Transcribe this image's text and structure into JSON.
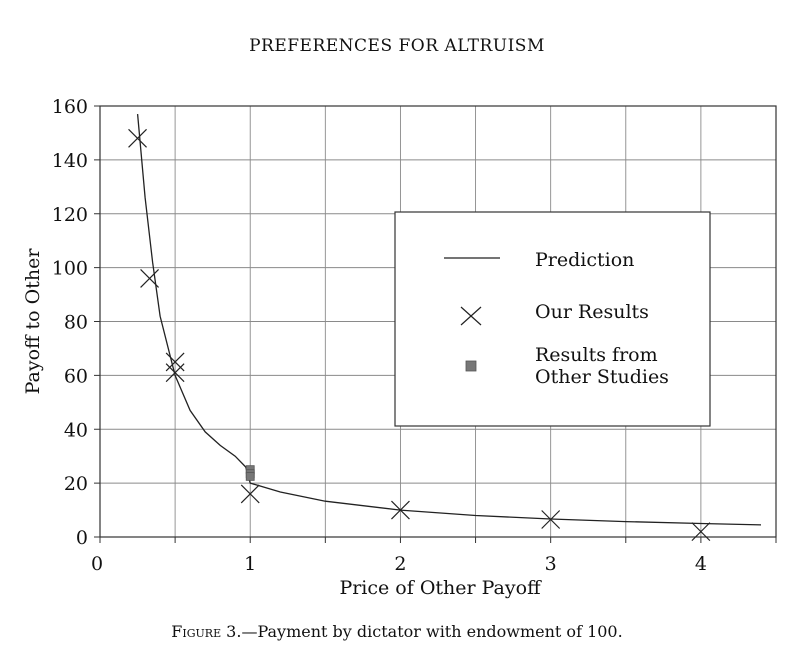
{
  "page": {
    "running_header": "PREFERENCES FOR ALTRUISM",
    "caption_prefix": "Figure 3.",
    "caption_text": "—Payment by dictator with endowment of 100."
  },
  "chart_data": {
    "type": "scatter",
    "title": "",
    "xlabel": "Price of Other Payoff",
    "ylabel": "Payoff to Other",
    "xlim": [
      0,
      4.5
    ],
    "ylim": [
      0,
      160
    ],
    "x_ticks": [
      0,
      1,
      2,
      3,
      4
    ],
    "y_ticks": [
      0,
      20,
      40,
      60,
      80,
      100,
      120,
      140,
      160
    ],
    "grid": true,
    "legend_position": "right-center",
    "series": [
      {
        "name": "Prediction",
        "kind": "line",
        "x": [
          0.25,
          0.3,
          0.35,
          0.4,
          0.5,
          0.6,
          0.7,
          0.8,
          0.9,
          0.97,
          1.0,
          1.2,
          1.5,
          2.0,
          2.5,
          3.0,
          3.5,
          4.0,
          4.4
        ],
        "y": [
          157,
          126,
          102,
          82,
          60,
          47,
          39,
          34,
          30,
          26,
          20,
          16.7,
          13.3,
          10.0,
          8.0,
          6.7,
          5.7,
          5.0,
          4.5
        ]
      },
      {
        "name": "Our Results",
        "kind": "marker-x",
        "x": [
          0.25,
          0.33,
          0.5,
          0.5,
          1.0,
          2.0,
          3.0,
          4.0
        ],
        "y": [
          148,
          96,
          65,
          61,
          16,
          10,
          6.5,
          2
        ]
      },
      {
        "name": "Results from Other Studies",
        "name_lines": [
          "Results from",
          "Other Studies"
        ],
        "kind": "marker-square",
        "x": [
          1.0,
          1.0,
          1.0
        ],
        "y": [
          25,
          23.5,
          22.5
        ]
      }
    ]
  }
}
